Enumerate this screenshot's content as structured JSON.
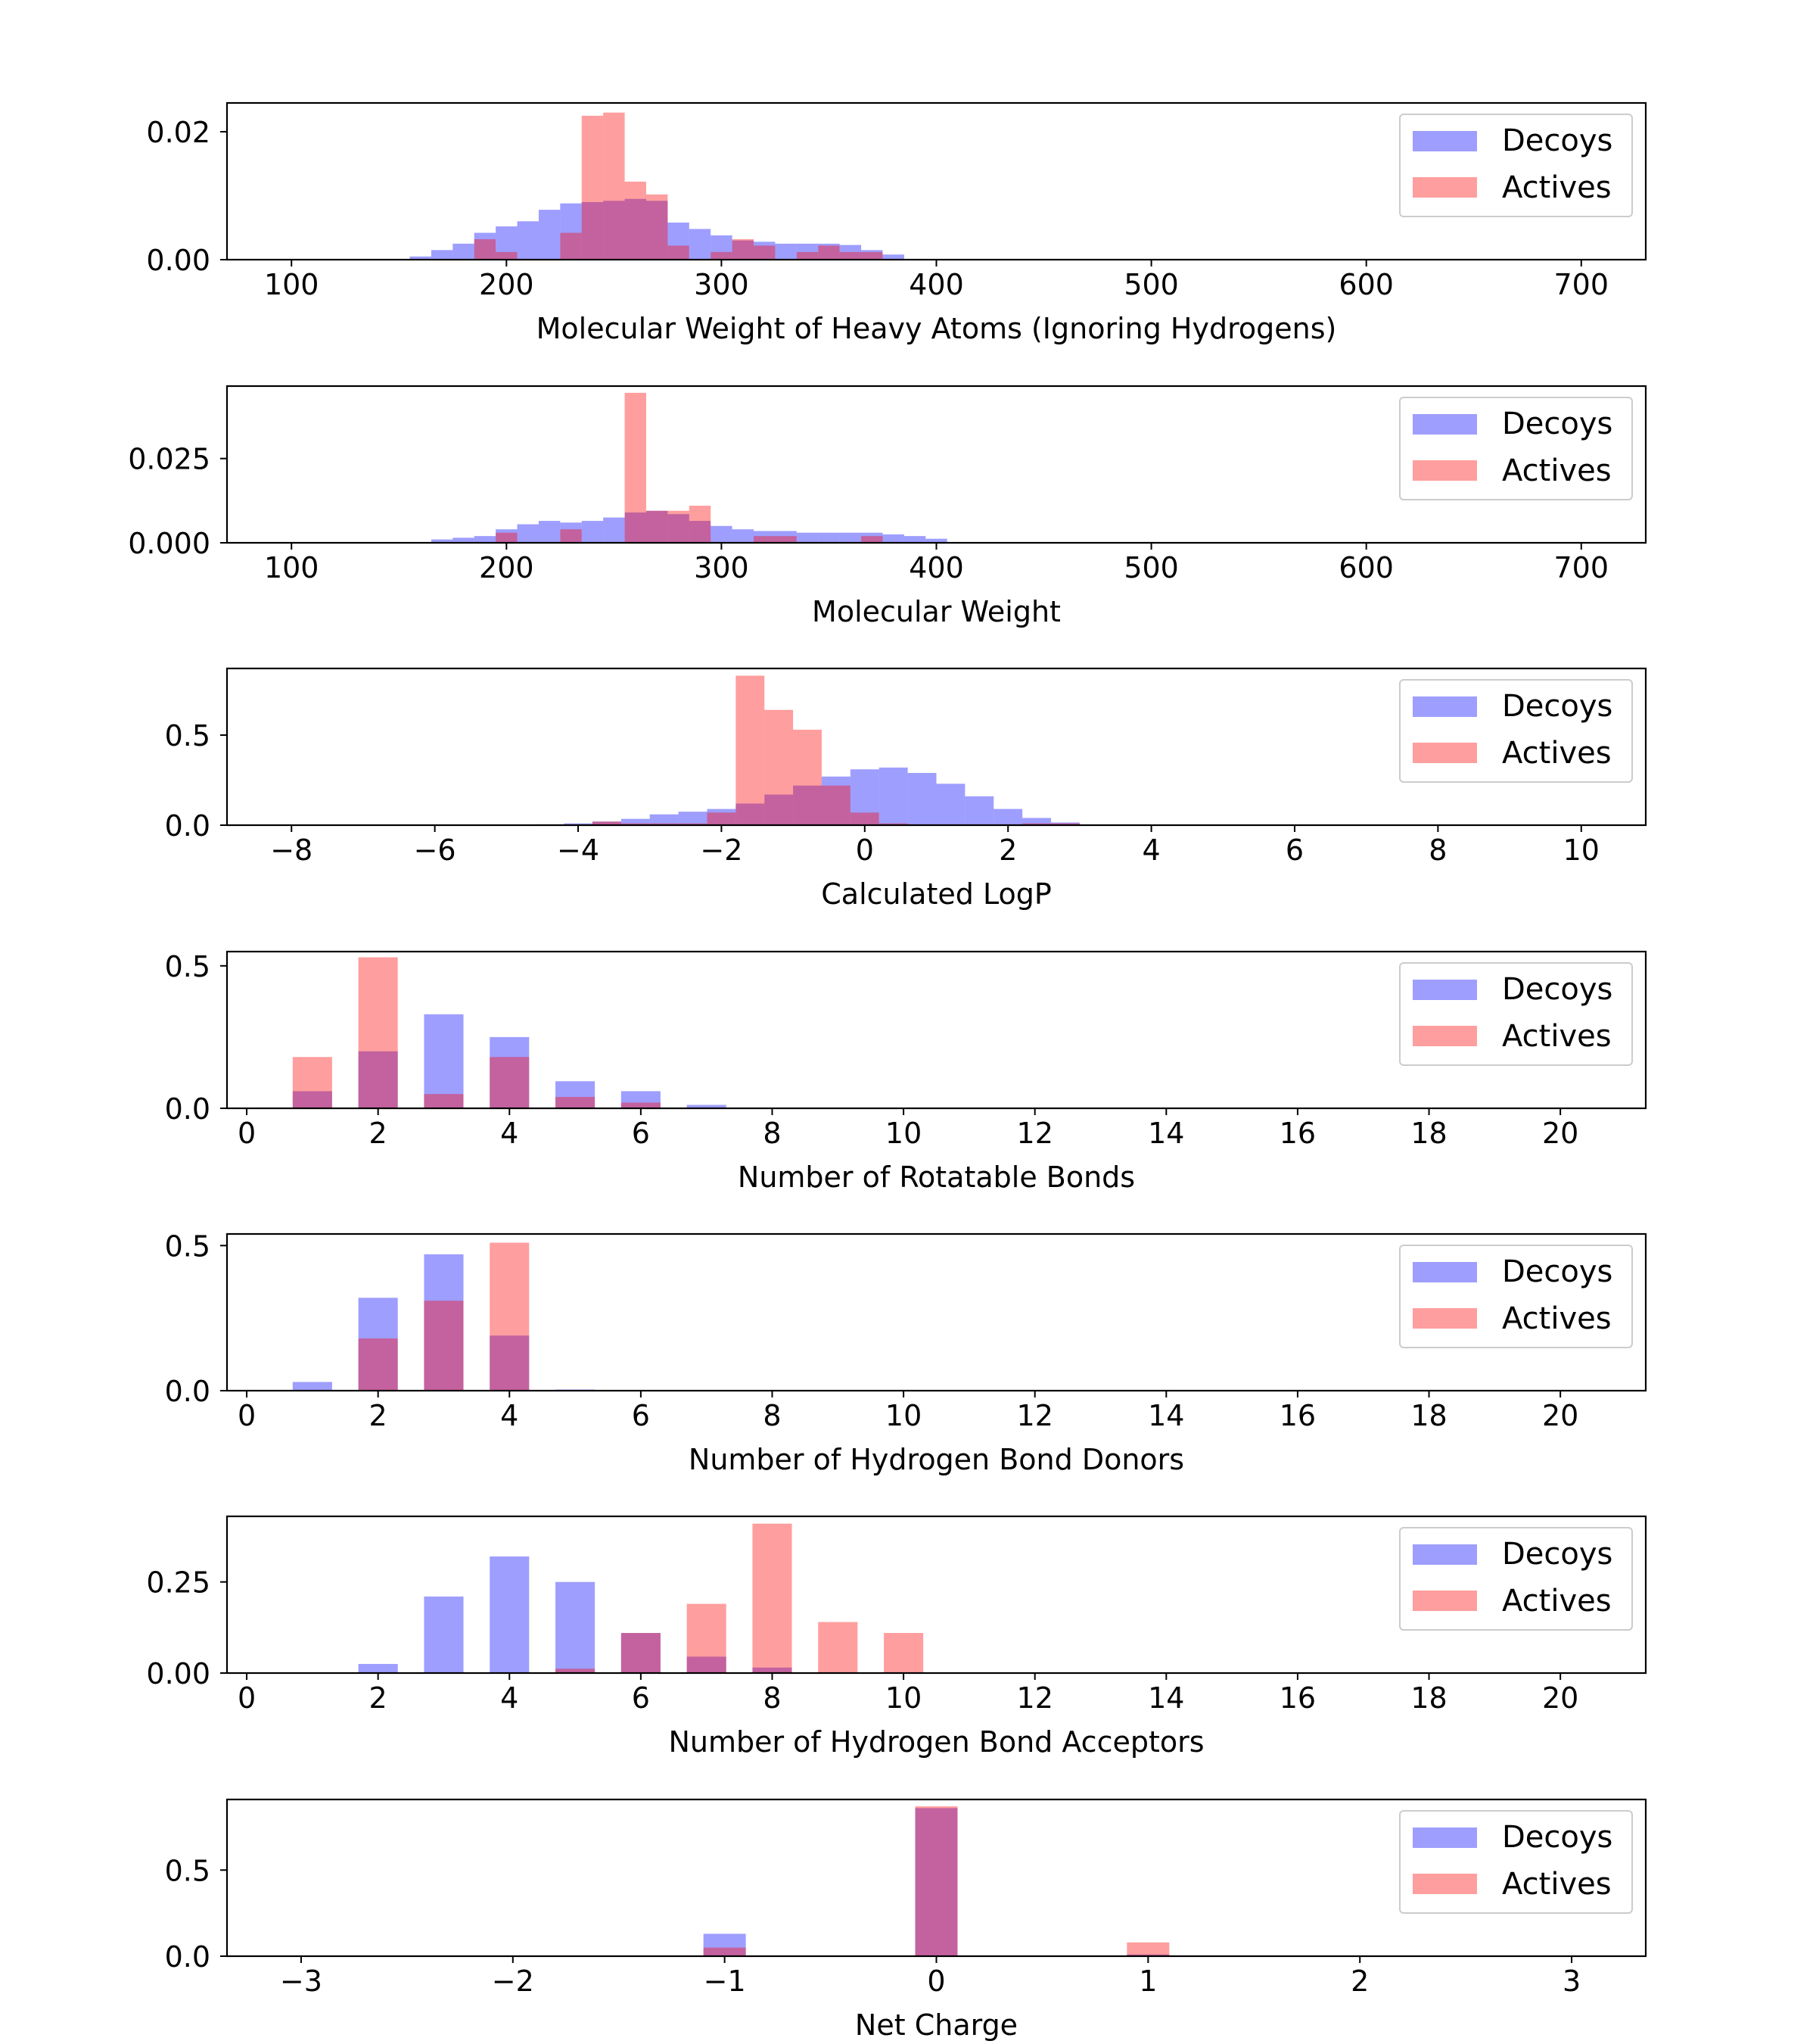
{
  "colors": {
    "decoys": "#0000ff",
    "actives": "#ff0000",
    "bar_alpha": 0.38,
    "axes": "#000000"
  },
  "legend": {
    "placement": "top-right",
    "decoys_label": "Decoys",
    "actives_label": "Actives"
  },
  "chart_data": [
    {
      "type": "bar",
      "xlabel": "Molecular Weight of Heavy Atoms (Ignoring Hydrogens)",
      "xlim": [
        70,
        730
      ],
      "ylim": [
        0,
        0.0245
      ],
      "xticks": [
        100,
        200,
        300,
        400,
        500,
        600,
        700
      ],
      "xtick_labels": [
        "100",
        "200",
        "300",
        "400",
        "500",
        "600",
        "700"
      ],
      "yticks": [
        0,
        0.02
      ],
      "ytick_labels": [
        "0.00",
        "0.02"
      ],
      "bin_width": 10,
      "series": [
        {
          "name": "Decoys",
          "x": [
            160,
            170,
            180,
            190,
            200,
            210,
            220,
            230,
            240,
            250,
            260,
            270,
            280,
            290,
            300,
            310,
            320,
            330,
            340,
            350,
            360,
            370,
            380
          ],
          "values": [
            0.0005,
            0.0015,
            0.0025,
            0.0042,
            0.0052,
            0.006,
            0.0078,
            0.0088,
            0.009,
            0.0092,
            0.0095,
            0.0092,
            0.0058,
            0.0048,
            0.0038,
            0.003,
            0.0028,
            0.0025,
            0.0025,
            0.0025,
            0.0023,
            0.0015,
            0.0008
          ]
        },
        {
          "name": "Actives",
          "x": [
            190,
            200,
            230,
            240,
            250,
            260,
            270,
            280,
            300,
            310,
            320,
            340,
            350,
            360,
            370
          ],
          "values": [
            0.0032,
            0.0012,
            0.0042,
            0.0225,
            0.023,
            0.0122,
            0.0102,
            0.0022,
            0.0012,
            0.0032,
            0.0022,
            0.0012,
            0.0022,
            0.0012,
            0.0012
          ]
        }
      ]
    },
    {
      "type": "bar",
      "xlabel": "Molecular Weight",
      "xlim": [
        70,
        730
      ],
      "ylim": [
        0,
        0.0465
      ],
      "xticks": [
        100,
        200,
        300,
        400,
        500,
        600,
        700
      ],
      "xtick_labels": [
        "100",
        "200",
        "300",
        "400",
        "500",
        "600",
        "700"
      ],
      "yticks": [
        0,
        0.025
      ],
      "ytick_labels": [
        "0.000",
        "0.025"
      ],
      "bin_width": 10,
      "series": [
        {
          "name": "Decoys",
          "x": [
            170,
            180,
            190,
            200,
            210,
            220,
            230,
            240,
            250,
            260,
            270,
            280,
            290,
            300,
            310,
            320,
            330,
            340,
            350,
            360,
            370,
            380,
            390,
            400
          ],
          "values": [
            0.001,
            0.0015,
            0.002,
            0.004,
            0.0055,
            0.0065,
            0.006,
            0.0065,
            0.0075,
            0.009,
            0.0095,
            0.0085,
            0.0065,
            0.005,
            0.004,
            0.0035,
            0.0035,
            0.003,
            0.003,
            0.003,
            0.003,
            0.0025,
            0.002,
            0.0012
          ]
        },
        {
          "name": "Actives",
          "x": [
            200,
            230,
            260,
            270,
            280,
            290,
            320,
            330,
            370
          ],
          "values": [
            0.003,
            0.004,
            0.0445,
            0.0095,
            0.0095,
            0.011,
            0.002,
            0.002,
            0.002
          ]
        }
      ]
    },
    {
      "type": "bar",
      "xlabel": "Calculated LogP",
      "xlim": [
        -8.9,
        10.9
      ],
      "ylim": [
        0,
        0.87
      ],
      "xticks": [
        -8,
        -6,
        -4,
        -2,
        0,
        2,
        4,
        6,
        8,
        10
      ],
      "xtick_labels": [
        "−8",
        "−6",
        "−4",
        "−2",
        "0",
        "2",
        "4",
        "6",
        "8",
        "10"
      ],
      "yticks": [
        0,
        0.5
      ],
      "ytick_labels": [
        "0.0",
        "0.5"
      ],
      "bin_width": 0.4,
      "series": [
        {
          "name": "Decoys",
          "x": [
            -4.4,
            -4.0,
            -3.6,
            -3.2,
            -2.8,
            -2.4,
            -2.0,
            -1.6,
            -1.2,
            -0.8,
            -0.4,
            0.0,
            0.4,
            0.8,
            1.2,
            1.6,
            2.0,
            2.4,
            2.8
          ],
          "values": [
            0.005,
            0.01,
            0.02,
            0.035,
            0.06,
            0.075,
            0.09,
            0.12,
            0.17,
            0.22,
            0.27,
            0.31,
            0.32,
            0.29,
            0.23,
            0.16,
            0.09,
            0.04,
            0.015
          ]
        },
        {
          "name": "Actives",
          "x": [
            -3.6,
            -3.2,
            -2.8,
            -2.4,
            -2.0,
            -1.6,
            -1.2,
            -0.8,
            -0.4,
            0.0,
            0.4,
            0.8,
            1.2,
            1.6,
            2.0,
            2.4,
            2.8
          ],
          "values": [
            0.02,
            0.01,
            0.01,
            0.01,
            0.07,
            0.83,
            0.64,
            0.53,
            0.22,
            0.07,
            0.01,
            0.005,
            0.005,
            0.005,
            0.005,
            0.01,
            0.01
          ]
        }
      ]
    },
    {
      "type": "bar",
      "xlabel": "Number of Rotatable Bonds",
      "xlim": [
        -0.3,
        21.3
      ],
      "ylim": [
        0,
        0.55
      ],
      "xticks": [
        0,
        2,
        4,
        6,
        8,
        10,
        12,
        14,
        16,
        18,
        20
      ],
      "xtick_labels": [
        "0",
        "2",
        "4",
        "6",
        "8",
        "10",
        "12",
        "14",
        "16",
        "18",
        "20"
      ],
      "yticks": [
        0,
        0.5
      ],
      "ytick_labels": [
        "0.0",
        "0.5"
      ],
      "bin_width": 0.6,
      "series": [
        {
          "name": "Decoys",
          "x": [
            1,
            2,
            3,
            4,
            5,
            6,
            7
          ],
          "values": [
            0.06,
            0.2,
            0.33,
            0.25,
            0.095,
            0.06,
            0.012
          ]
        },
        {
          "name": "Actives",
          "x": [
            1,
            2,
            3,
            4,
            5,
            6
          ],
          "values": [
            0.18,
            0.53,
            0.05,
            0.18,
            0.04,
            0.02
          ]
        }
      ]
    },
    {
      "type": "bar",
      "xlabel": "Number of Hydrogen Bond Donors",
      "xlim": [
        -0.3,
        21.3
      ],
      "ylim": [
        0,
        0.54
      ],
      "xticks": [
        0,
        2,
        4,
        6,
        8,
        10,
        12,
        14,
        16,
        18,
        20
      ],
      "xtick_labels": [
        "0",
        "2",
        "4",
        "6",
        "8",
        "10",
        "12",
        "14",
        "16",
        "18",
        "20"
      ],
      "yticks": [
        0,
        0.5
      ],
      "ytick_labels": [
        "0.0",
        "0.5"
      ],
      "bin_width": 0.6,
      "series": [
        {
          "name": "Decoys",
          "x": [
            1,
            2,
            3,
            4,
            5
          ],
          "values": [
            0.03,
            0.32,
            0.47,
            0.19,
            0.004
          ]
        },
        {
          "name": "Actives",
          "x": [
            2,
            3,
            4
          ],
          "values": [
            0.18,
            0.31,
            0.51
          ]
        }
      ]
    },
    {
      "type": "bar",
      "xlabel": "Number of Hydrogen Bond Acceptors",
      "xlim": [
        -0.3,
        21.3
      ],
      "ylim": [
        0,
        0.43
      ],
      "xticks": [
        0,
        2,
        4,
        6,
        8,
        10,
        12,
        14,
        16,
        18,
        20
      ],
      "xtick_labels": [
        "0",
        "2",
        "4",
        "6",
        "8",
        "10",
        "12",
        "14",
        "16",
        "18",
        "20"
      ],
      "yticks": [
        0,
        0.25
      ],
      "ytick_labels": [
        "0.00",
        "0.25"
      ],
      "bin_width": 0.6,
      "series": [
        {
          "name": "Decoys",
          "x": [
            2,
            3,
            4,
            5,
            6,
            7,
            8
          ],
          "values": [
            0.025,
            0.21,
            0.32,
            0.25,
            0.11,
            0.045,
            0.015
          ]
        },
        {
          "name": "Actives",
          "x": [
            5,
            6,
            7,
            8,
            9,
            10
          ],
          "values": [
            0.012,
            0.11,
            0.19,
            0.41,
            0.14,
            0.11
          ]
        }
      ]
    },
    {
      "type": "bar",
      "xlabel": "Net Charge",
      "xlim": [
        -3.35,
        3.35
      ],
      "ylim": [
        0,
        0.91
      ],
      "xticks": [
        -3,
        -2,
        -1,
        0,
        1,
        2,
        3
      ],
      "xtick_labels": [
        "−3",
        "−2",
        "−1",
        "0",
        "1",
        "2",
        "3"
      ],
      "yticks": [
        0,
        0.5
      ],
      "ytick_labels": [
        "0.0",
        "0.5"
      ],
      "bin_width": 0.2,
      "series": [
        {
          "name": "Decoys",
          "x": [
            -1,
            0,
            1
          ],
          "values": [
            0.13,
            0.86,
            0.01
          ]
        },
        {
          "name": "Actives",
          "x": [
            -1,
            0,
            1
          ],
          "values": [
            0.05,
            0.87,
            0.08
          ]
        }
      ]
    }
  ]
}
